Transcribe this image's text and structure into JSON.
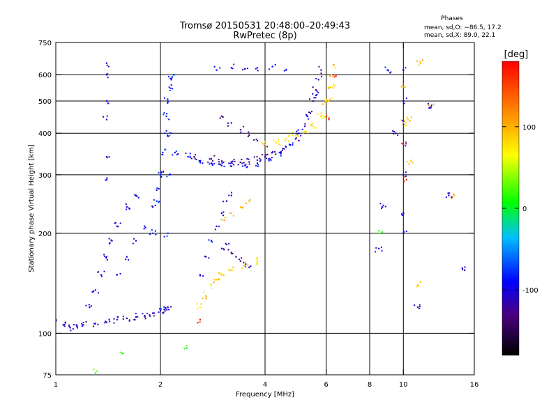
{
  "chart_data": {
    "type": "scatter",
    "title": "Tromsø 20150531 20:48:00–20:49:43",
    "subtitle": "RwPretec (8p)",
    "xlabel": "Frequency [MHz]",
    "ylabel": "Stationary phase Virtual Height [km]",
    "x_scale": "log",
    "y_scale": "log",
    "xlim": [
      1,
      16
    ],
    "ylim": [
      75,
      750
    ],
    "x_ticks": [
      1,
      2,
      4,
      6,
      8,
      10,
      16
    ],
    "y_ticks": [
      75,
      100,
      200,
      300,
      400,
      500,
      600,
      750
    ],
    "grid_x": [
      2,
      4,
      6,
      8,
      10
    ],
    "grid_y": [
      100,
      200,
      300,
      400,
      500,
      600
    ],
    "grid": true,
    "phase_box": {
      "title": "Phases",
      "line1": "mean, sd,O: −86.5, 17.2",
      "line2": "mean, sd,X:  89.0, 22.1"
    },
    "colorbar": {
      "label": "[deg]",
      "min": -180,
      "max": 180,
      "ticks": [
        100,
        0,
        -100
      ],
      "colors": [
        "#000000",
        "#4b0082",
        "#0000ff",
        "#00bfff",
        "#00ff00",
        "#ffff00",
        "#ff8000",
        "#ff0000"
      ]
    },
    "traces": [
      {
        "type": "o",
        "phase": -110,
        "x": [
          1.0,
          1.05,
          1.1,
          1.15,
          1.2,
          1.3,
          1.4,
          1.5,
          1.6,
          1.7,
          1.8,
          1.9,
          2.0,
          2.05,
          2.1
        ],
        "y": [
          110,
          106,
          104,
          105,
          106,
          107,
          108,
          110,
          111,
          112,
          113,
          115,
          117,
          118,
          120
        ]
      },
      {
        "type": "o",
        "phase": -105,
        "x": [
          1.25,
          1.3,
          1.35,
          1.4,
          1.45,
          1.5,
          1.6,
          1.7
        ],
        "y": [
          120,
          135,
          150,
          170,
          190,
          210,
          240,
          260
        ]
      },
      {
        "type": "o",
        "phase": -95,
        "x": [
          1.5,
          1.6,
          1.7,
          1.8,
          1.9,
          1.95,
          2.0
        ],
        "y": [
          150,
          170,
          190,
          210,
          240,
          270,
          300
        ]
      },
      {
        "type": "o",
        "phase": -80,
        "x": [
          1.9,
          1.95,
          2.0,
          2.03,
          2.06,
          2.08,
          2.1,
          2.12,
          2.15
        ],
        "y": [
          200,
          250,
          300,
          350,
          400,
          450,
          500,
          550,
          580
        ]
      },
      {
        "type": "o",
        "phase": -75,
        "x": [
          2.05,
          2.1,
          2.12,
          2.15,
          2.18
        ],
        "y": [
          120,
          200,
          300,
          400,
          600
        ]
      },
      {
        "type": "o",
        "phase": -90,
        "x": [
          2.2,
          2.4,
          2.6,
          2.8,
          3.0,
          3.2,
          3.5,
          3.8,
          4.1,
          4.4,
          4.7,
          5.0,
          5.3,
          5.6
        ],
        "y": [
          350,
          340,
          330,
          325,
          320,
          318,
          320,
          325,
          335,
          350,
          370,
          400,
          450,
          520
        ]
      },
      {
        "type": "o",
        "phase": -120,
        "x": [
          2.5,
          2.8,
          3.0,
          3.2,
          3.4,
          3.6,
          3.8,
          4.0,
          4.2,
          4.5
        ],
        "y": [
          340,
          335,
          330,
          328,
          327,
          328,
          332,
          340,
          350,
          360
        ]
      },
      {
        "type": "o",
        "phase": -130,
        "x": [
          3.0,
          3.2,
          3.4,
          3.6,
          3.8,
          4.0
        ],
        "y": [
          450,
          430,
          410,
          395,
          380,
          370
        ]
      },
      {
        "type": "o",
        "phase": -115,
        "x": [
          5.0,
          5.2,
          5.4,
          5.5,
          5.6,
          5.7,
          5.8
        ],
        "y": [
          380,
          420,
          460,
          500,
          540,
          580,
          620
        ]
      },
      {
        "type": "o",
        "phase": -95,
        "x": [
          2.6,
          2.7,
          2.8,
          2.9,
          3.0,
          3.1,
          3.2
        ],
        "y": [
          150,
          170,
          190,
          210,
          230,
          250,
          260
        ]
      },
      {
        "type": "o",
        "phase": -125,
        "x": [
          3.0,
          3.1,
          3.2,
          3.3,
          3.4,
          3.5,
          3.6
        ],
        "y": [
          180,
          185,
          175,
          170,
          165,
          160,
          158
        ]
      },
      {
        "type": "o",
        "phase": -90,
        "x": [
          2.9,
          3.2,
          3.5,
          3.8,
          4.2,
          4.6
        ],
        "y": [
          620,
          630,
          625,
          630,
          635,
          620
        ]
      },
      {
        "type": "x",
        "phase": 80,
        "x": [
          4.0,
          4.3,
          4.6,
          4.9,
          5.2,
          5.5,
          5.8,
          6.1,
          6.3
        ],
        "y": [
          370,
          375,
          385,
          395,
          405,
          420,
          450,
          500,
          560
        ]
      },
      {
        "type": "x",
        "phase": 90,
        "x": [
          5.8,
          6.0,
          6.1,
          6.2,
          6.3
        ],
        "y": [
          450,
          500,
          550,
          600,
          640
        ]
      },
      {
        "type": "x",
        "phase": 85,
        "x": [
          2.6,
          2.7,
          2.8,
          2.9,
          3.0,
          3.2,
          3.5,
          3.8
        ],
        "y": [
          120,
          130,
          140,
          145,
          150,
          155,
          160,
          165
        ]
      },
      {
        "type": "x",
        "phase": 100,
        "x": [
          3.0,
          3.2,
          3.4,
          3.6
        ],
        "y": [
          220,
          230,
          240,
          250
        ]
      },
      {
        "type": "o",
        "phase": -100,
        "x": [
          1.4,
          1.4,
          1.4,
          1.4,
          1.4,
          1.4
        ],
        "y": [
          650,
          600,
          500,
          440,
          340,
          290
        ]
      },
      {
        "type": "o",
        "phase": -100,
        "x": [
          10.0,
          10.0,
          10.0,
          10.0,
          10.0,
          10.0,
          10.0
        ],
        "y": [
          620,
          500,
          430,
          370,
          300,
          230,
          200
        ]
      },
      {
        "type": "x",
        "phase": 95,
        "x": [
          10.0,
          10.1,
          10.3,
          10.5,
          11.0,
          11.2,
          12.0,
          14.0
        ],
        "y": [
          430,
          550,
          440,
          330,
          140,
          650,
          480,
          260
        ]
      },
      {
        "type": "o",
        "phase": -100,
        "x": [
          8.5,
          9.0,
          8.7,
          11.0,
          12.0,
          13.5,
          15.0,
          9.5
        ],
        "y": [
          180,
          620,
          240,
          120,
          480,
          260,
          155,
          400
        ]
      },
      {
        "type": "x",
        "phase": 170,
        "x": [
          6.0,
          6.3,
          10.0,
          10.2,
          2.6
        ],
        "y": [
          450,
          600,
          370,
          290,
          110
        ]
      },
      {
        "type": "x",
        "phase": 20,
        "x": [
          8.5,
          1.55,
          2.35,
          1.3
        ],
        "y": [
          200,
          87,
          90,
          76
        ]
      }
    ]
  }
}
